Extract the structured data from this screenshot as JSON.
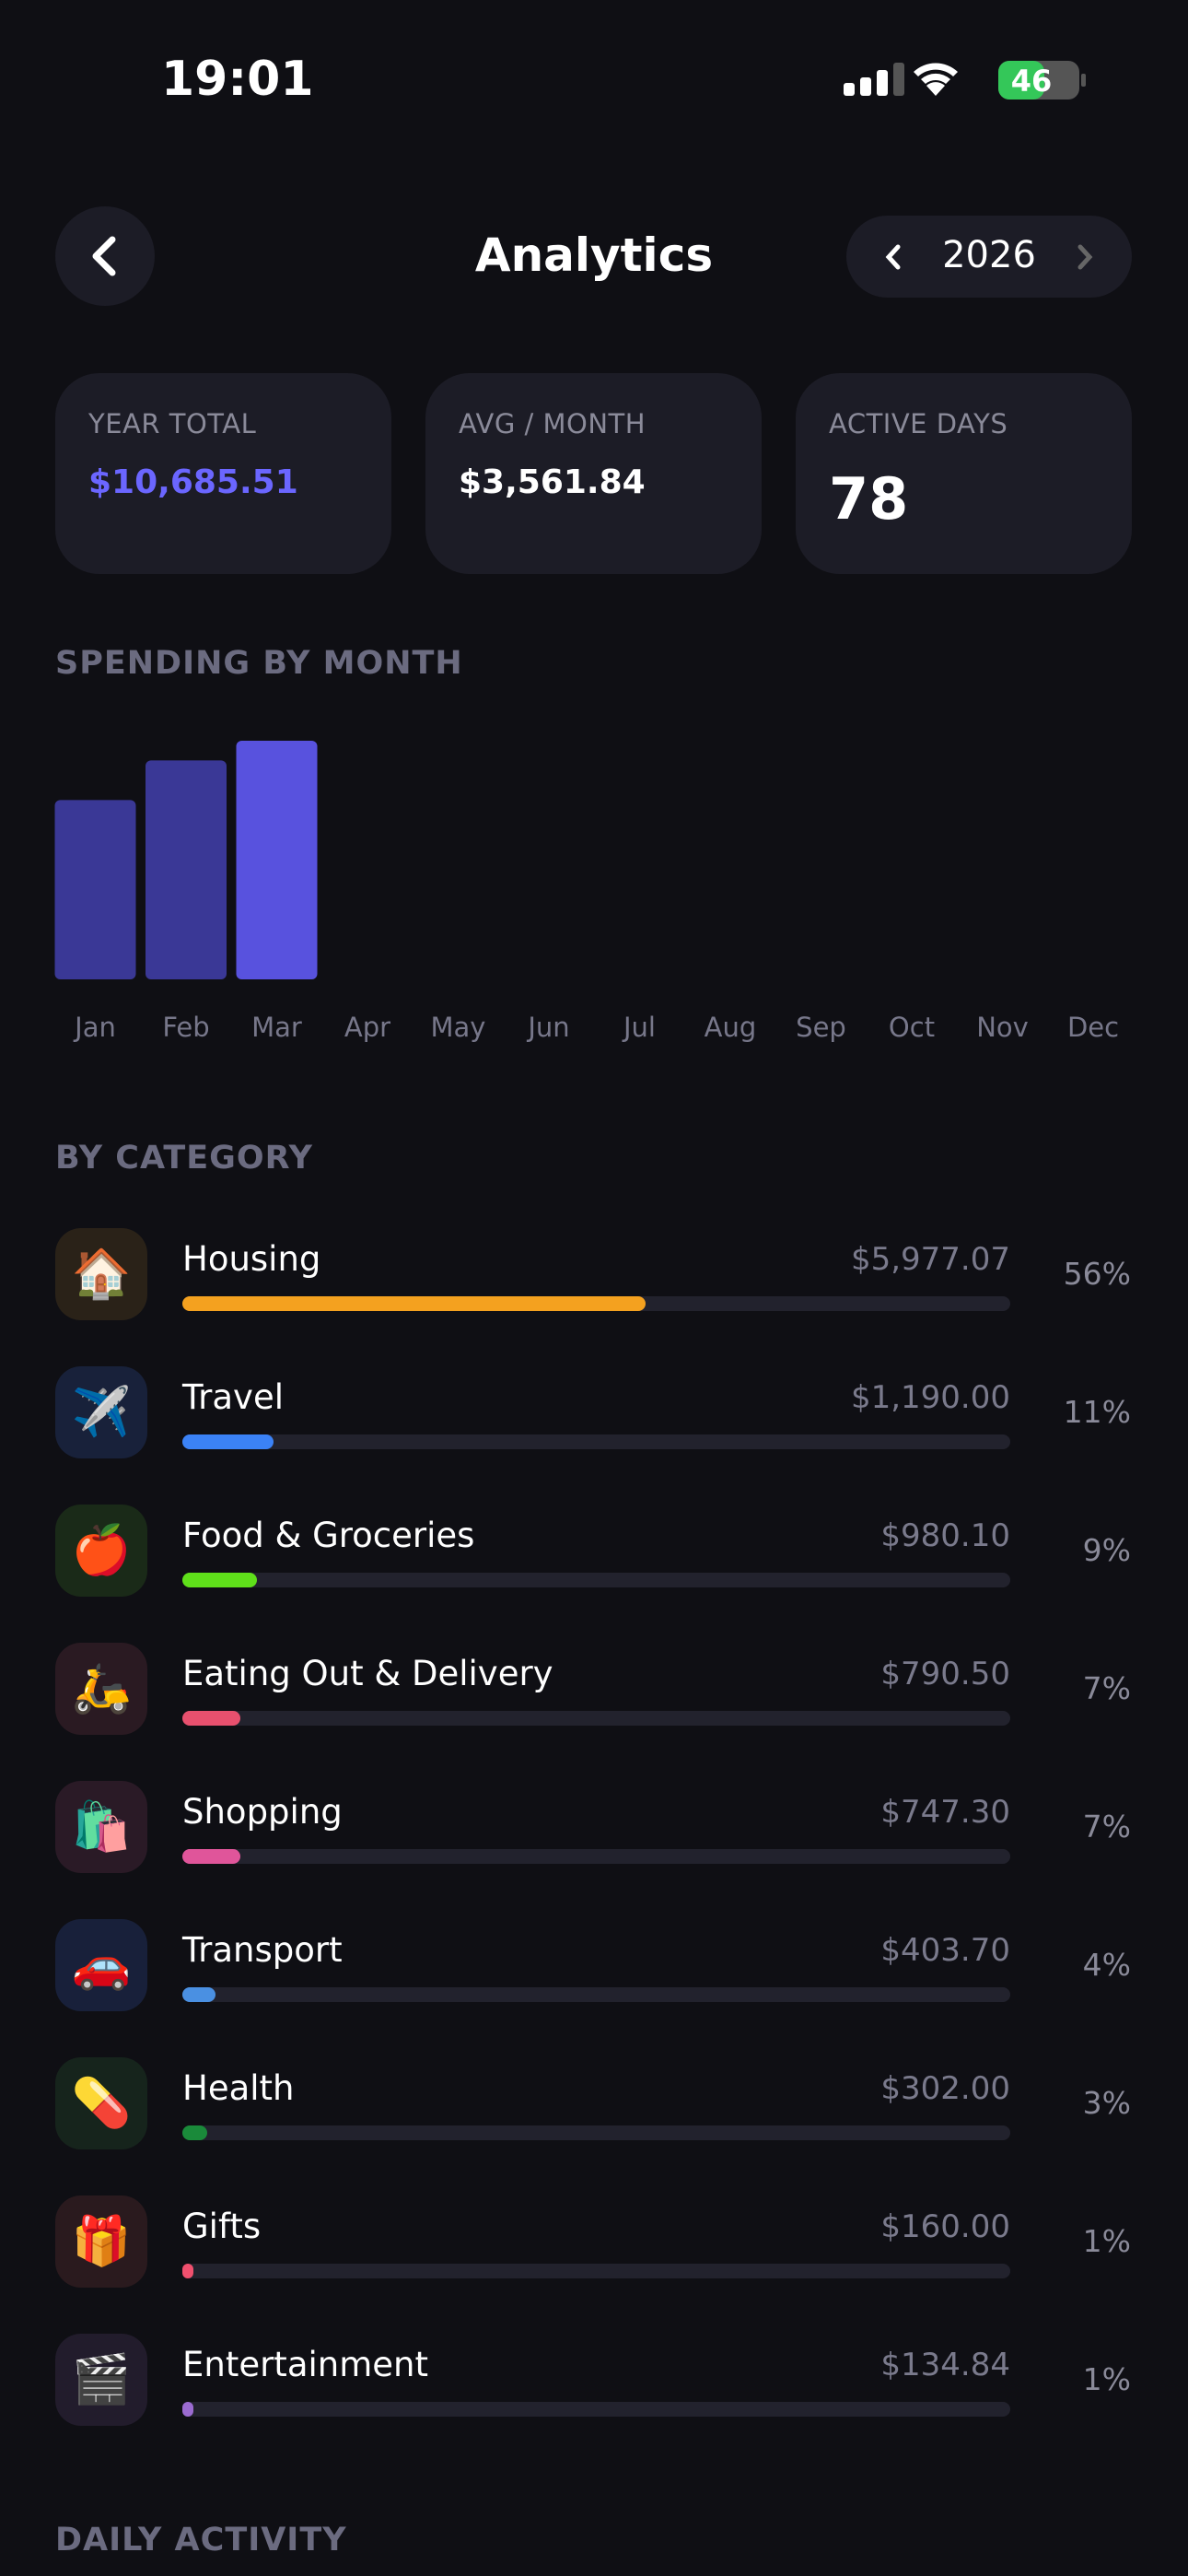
{
  "status_bar": {
    "time": "19:01",
    "battery": "46"
  },
  "header": {
    "title": "Analytics",
    "year": "2026"
  },
  "stats": [
    {
      "label": "YEAR TOTAL",
      "value": "$10,685.51"
    },
    {
      "label": "AVG / MONTH",
      "value": "$3,561.84"
    },
    {
      "label": "ACTIVE DAYS",
      "value": "78"
    }
  ],
  "chart_data": {
    "type": "bar",
    "title": "SPENDING BY MONTH",
    "categories": [
      "Jan",
      "Feb",
      "Mar",
      "Apr",
      "May",
      "Jun",
      "Jul",
      "Aug",
      "Sep",
      "Oct",
      "Nov",
      "Dec"
    ],
    "values": [
      3009,
      3672,
      4003,
      null,
      null,
      null,
      null,
      null,
      null,
      null,
      null,
      null
    ],
    "colors": [
      "#3a3896",
      "#3a3896",
      "#5852de",
      "#3a3896",
      "#3a3896",
      "#3a3896",
      "#3a3896",
      "#3a3896",
      "#3a3896",
      "#3a3896",
      "#3a3896",
      "#3a3896"
    ]
  },
  "by_category": {
    "title": "BY CATEGORY",
    "rows": [
      {
        "icon": "🏠",
        "name": "Housing",
        "amount": "$5,977.07",
        "percent": {
          "value": 56,
          "label": "56%"
        },
        "color": "#f4a11f",
        "tint": "#2a2218"
      },
      {
        "icon": "✈️",
        "name": "Travel",
        "amount": "$1,190.00",
        "percent": {
          "value": 11,
          "label": "11%"
        },
        "color": "#3b82f6",
        "tint": "#18213a"
      },
      {
        "icon": "🍎",
        "name": "Food & Groceries",
        "amount": "$980.10",
        "percent": {
          "value": 9,
          "label": "9%"
        },
        "color": "#5fe01a",
        "tint": "#1a2a18"
      },
      {
        "icon": "🛵",
        "name": "Eating Out & Delivery",
        "amount": "$790.50",
        "percent": {
          "value": 7,
          "label": "7%"
        },
        "color": "#e8506e",
        "tint": "#2a1a22"
      },
      {
        "icon": "🛍️",
        "name": "Shopping",
        "amount": "$747.30",
        "percent": {
          "value": 7,
          "label": "7%"
        },
        "color": "#e0559a",
        "tint": "#2a1a26"
      },
      {
        "icon": "🚗",
        "name": "Transport",
        "amount": "$403.70",
        "percent": {
          "value": 4,
          "label": "4%"
        },
        "color": "#4a90e2",
        "tint": "#18203a"
      },
      {
        "icon": "💊",
        "name": "Health",
        "amount": "$302.00",
        "percent": {
          "value": 3,
          "label": "3%"
        },
        "color": "#1a8a3a",
        "tint": "#16241c"
      },
      {
        "icon": "🎁",
        "name": "Gifts",
        "amount": "$160.00",
        "percent": {
          "value": 1,
          "label": "1%"
        },
        "color": "#f0506e",
        "tint": "#2a1a1e"
      },
      {
        "icon": "🎬",
        "name": "Entertainment",
        "amount": "$134.84",
        "percent": {
          "value": 1,
          "label": "1%"
        },
        "color": "#9b6bd0",
        "tint": "#221c2c"
      }
    ]
  },
  "daily_activity": {
    "title": "DAILY ACTIVITY"
  }
}
